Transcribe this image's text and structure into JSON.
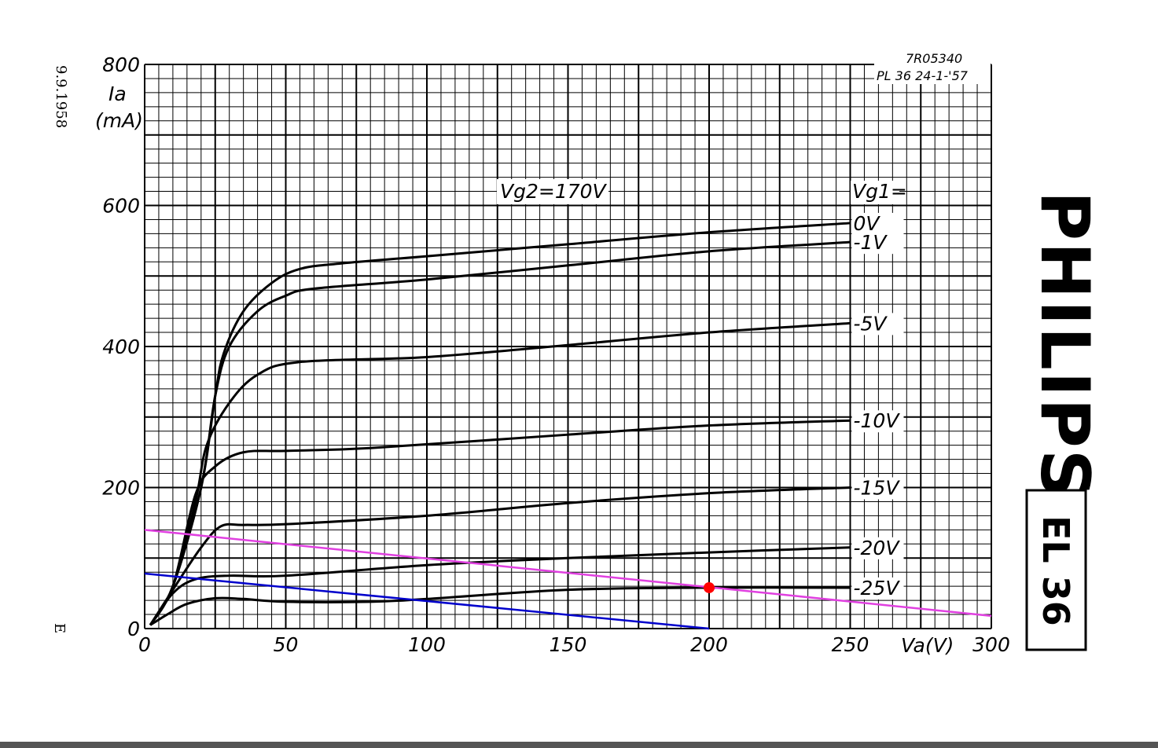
{
  "stamp": {
    "date": "9.9.1958",
    "letter": "E"
  },
  "ref": {
    "code": "7R05340",
    "drawing": "PL 36  24-1-'57"
  },
  "brand": "PHILIPS",
  "model": "EL 36",
  "chart_data": {
    "type": "line",
    "xlabel": "Va(V)",
    "ylabel": "Ia",
    "yunit": "(mA)",
    "xlim": [
      0,
      300
    ],
    "ylim": [
      0,
      800
    ],
    "xticks": [
      0,
      50,
      100,
      150,
      200,
      250,
      300
    ],
    "xtick_labels": [
      "0",
      "50",
      "100",
      "150",
      "200",
      "250",
      "300"
    ],
    "yticks": [
      0,
      200,
      400,
      600,
      800
    ],
    "ytick_labels": [
      "0",
      "200",
      "400",
      "600",
      "800"
    ],
    "grid": true,
    "annotation": "Vg2=170V",
    "legend_title": "Vg1=",
    "series": [
      {
        "name": "0V",
        "color": "#000000",
        "points": [
          [
            2,
            5
          ],
          [
            10,
            60
          ],
          [
            20,
            200
          ],
          [
            25,
            330
          ],
          [
            28,
            390
          ],
          [
            35,
            450
          ],
          [
            45,
            490
          ],
          [
            55,
            510
          ],
          [
            70,
            518
          ],
          [
            100,
            528
          ],
          [
            150,
            545
          ],
          [
            200,
            562
          ],
          [
            250,
            575
          ]
        ]
      },
      {
        "name": "-1V",
        "color": "#000000",
        "points": [
          [
            2,
            5
          ],
          [
            10,
            60
          ],
          [
            20,
            200
          ],
          [
            25,
            330
          ],
          [
            30,
            400
          ],
          [
            40,
            450
          ],
          [
            50,
            472
          ],
          [
            60,
            482
          ],
          [
            100,
            495
          ],
          [
            150,
            515
          ],
          [
            200,
            535
          ],
          [
            250,
            548
          ]
        ]
      },
      {
        "name": "-5V",
        "color": "#000000",
        "points": [
          [
            2,
            5
          ],
          [
            10,
            60
          ],
          [
            18,
            180
          ],
          [
            22,
            260
          ],
          [
            30,
            320
          ],
          [
            40,
            360
          ],
          [
            55,
            378
          ],
          [
            100,
            385
          ],
          [
            150,
            402
          ],
          [
            200,
            420
          ],
          [
            250,
            433
          ]
        ]
      },
      {
        "name": "-10V",
        "color": "#000000",
        "points": [
          [
            2,
            5
          ],
          [
            10,
            60
          ],
          [
            18,
            190
          ],
          [
            25,
            230
          ],
          [
            35,
            250
          ],
          [
            50,
            252
          ],
          [
            80,
            256
          ],
          [
            150,
            275
          ],
          [
            200,
            288
          ],
          [
            250,
            295
          ]
        ]
      },
      {
        "name": "-15V",
        "color": "#000000",
        "points": [
          [
            2,
            5
          ],
          [
            10,
            55
          ],
          [
            20,
            115
          ],
          [
            27,
            145
          ],
          [
            35,
            147
          ],
          [
            50,
            148
          ],
          [
            100,
            160
          ],
          [
            150,
            178
          ],
          [
            200,
            192
          ],
          [
            250,
            200
          ]
        ]
      },
      {
        "name": "-20V",
        "color": "#000000",
        "points": [
          [
            2,
            5
          ],
          [
            10,
            50
          ],
          [
            18,
            70
          ],
          [
            30,
            75
          ],
          [
            50,
            75
          ],
          [
            100,
            90
          ],
          [
            150,
            100
          ],
          [
            200,
            108
          ],
          [
            250,
            115
          ]
        ]
      },
      {
        "name": "-25V",
        "color": "#000000",
        "points": [
          [
            2,
            5
          ],
          [
            8,
            20
          ],
          [
            15,
            35
          ],
          [
            25,
            43
          ],
          [
            35,
            42
          ],
          [
            50,
            38
          ],
          [
            80,
            38
          ],
          [
            100,
            42
          ],
          [
            150,
            55
          ],
          [
            200,
            58
          ],
          [
            250,
            58
          ]
        ]
      }
    ],
    "load_lines": [
      {
        "color": "#0000cc",
        "points": [
          [
            0,
            78
          ],
          [
            200,
            0
          ]
        ]
      },
      {
        "color": "#e040e0",
        "points": [
          [
            0,
            140
          ],
          [
            300,
            18
          ]
        ]
      }
    ],
    "operating_point": {
      "x": 200,
      "y": 58,
      "color": "#ff0000"
    }
  }
}
